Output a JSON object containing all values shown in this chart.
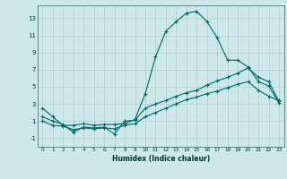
{
  "xlabel": "Humidex (Indice chaleur)",
  "background_color": "#cce8e8",
  "grid_color": "#b0cccc",
  "line_color": "#006666",
  "xlim": [
    -0.5,
    23.5
  ],
  "ylim": [
    -2.0,
    14.5
  ],
  "yticks": [
    -1,
    1,
    3,
    5,
    7,
    9,
    11,
    13
  ],
  "xticks": [
    0,
    1,
    2,
    3,
    4,
    5,
    6,
    7,
    8,
    9,
    10,
    11,
    12,
    13,
    14,
    15,
    16,
    17,
    18,
    19,
    20,
    21,
    22,
    23
  ],
  "series1_x": [
    0,
    1,
    2,
    3,
    4,
    5,
    6,
    7,
    8,
    9,
    10,
    11,
    12,
    13,
    14,
    15,
    16,
    17,
    18,
    19,
    20,
    21,
    22,
    23
  ],
  "series1_y": [
    2.5,
    1.5,
    0.5,
    0.5,
    0.7,
    0.5,
    0.6,
    0.6,
    0.7,
    1.2,
    4.2,
    8.5,
    11.5,
    12.6,
    13.6,
    13.8,
    12.6,
    10.7,
    8.1,
    8.1,
    7.3,
    5.6,
    5.1,
    3.1
  ],
  "series2_x": [
    0,
    1,
    2,
    3,
    4,
    5,
    6,
    7,
    8,
    9,
    10,
    11,
    12,
    13,
    14,
    15,
    16,
    17,
    18,
    19,
    20,
    21,
    22,
    23
  ],
  "series2_y": [
    1.5,
    1.0,
    0.6,
    -0.3,
    0.3,
    0.2,
    0.3,
    -0.5,
    1.0,
    1.1,
    2.5,
    3.0,
    3.4,
    3.9,
    4.3,
    4.6,
    5.2,
    5.7,
    6.1,
    6.6,
    7.2,
    6.1,
    5.6,
    3.3
  ],
  "series3_x": [
    0,
    1,
    2,
    3,
    4,
    5,
    6,
    7,
    8,
    9,
    10,
    11,
    12,
    13,
    14,
    15,
    16,
    17,
    18,
    19,
    20,
    21,
    22,
    23
  ],
  "series3_y": [
    1.0,
    0.5,
    0.4,
    0.0,
    0.2,
    0.1,
    0.2,
    0.1,
    0.5,
    0.7,
    1.5,
    2.0,
    2.5,
    3.0,
    3.5,
    3.8,
    4.2,
    4.5,
    4.9,
    5.3,
    5.6,
    4.6,
    3.9,
    3.4
  ]
}
